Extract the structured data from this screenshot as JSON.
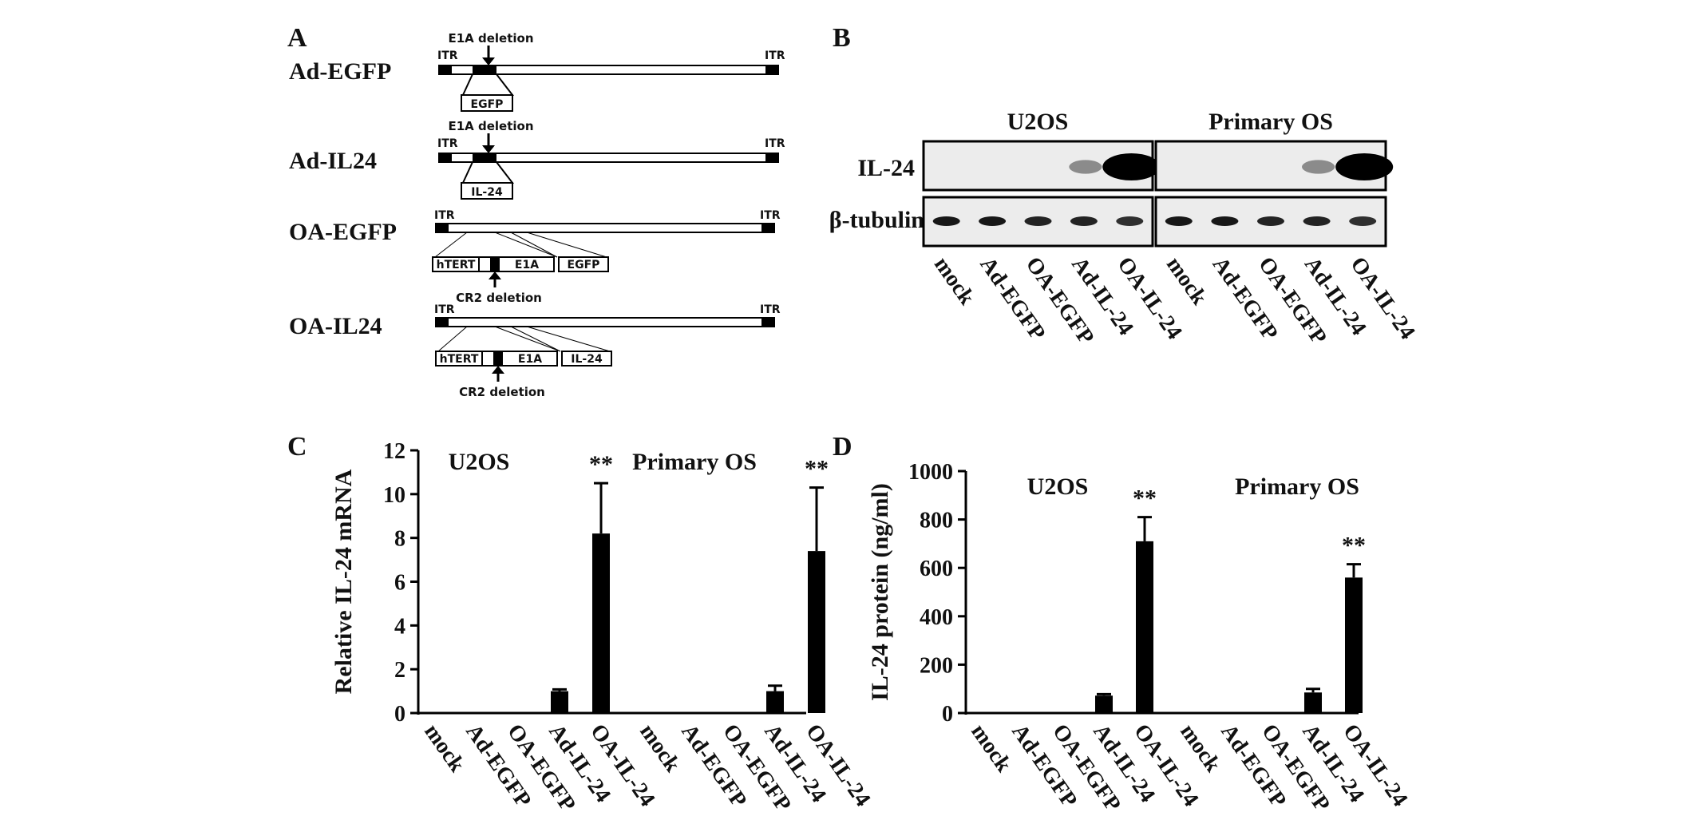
{
  "figure": {
    "panels": [
      "A",
      "B",
      "C",
      "D"
    ]
  },
  "panel_a": {
    "constructs": [
      {
        "name": "Ad-EGFP",
        "itr_left": "ITR",
        "itr_right": "ITR",
        "deletion_label": "E1A deletion",
        "insert": "EGFP"
      },
      {
        "name": "Ad-IL24",
        "itr_left": "ITR",
        "itr_right": "ITR",
        "deletion_label": "E1A deletion",
        "insert": "IL-24"
      },
      {
        "name": "OA-EGFP",
        "itr_left": "ITR",
        "itr_right": "ITR",
        "promoter": "hTERT",
        "gene": "E1A",
        "insert": "EGFP",
        "deletion_label": "CR2 deletion"
      },
      {
        "name": "OA-IL24",
        "itr_left": "ITR",
        "itr_right": "ITR",
        "promoter": "hTERT",
        "gene": "E1A",
        "insert": "IL-24",
        "deletion_label": "CR2 deletion"
      }
    ]
  },
  "panel_b": {
    "groups": [
      "U2OS",
      "Primary OS"
    ],
    "rows": [
      "IL-24",
      "β-tubulin"
    ],
    "lanes": [
      "mock",
      "Ad-EGFP",
      "OA-EGFP",
      "Ad-IL-24",
      "OA-IL-24"
    ],
    "il24_band_intensity": [
      0,
      0,
      0,
      0.3,
      1.0
    ],
    "tubulin_band_intensity": [
      0.9,
      0.9,
      0.85,
      0.85,
      0.8
    ]
  },
  "chart_data": [
    {
      "panel": "C",
      "type": "bar",
      "title": "",
      "xlabel": "",
      "ylabel": "Relative IL-24 mRNA",
      "ylim": [
        0,
        12
      ],
      "yticks": [
        0,
        2,
        4,
        6,
        8,
        10,
        12
      ],
      "groups": [
        "U2OS",
        "Primary OS"
      ],
      "categories": [
        "mock",
        "Ad-EGFP",
        "OA-EGFP",
        "Ad-IL-24",
        "OA-IL-24"
      ],
      "series": [
        {
          "name": "U2OS",
          "values": [
            0.02,
            0.02,
            0.02,
            1.0,
            8.2
          ],
          "errors": [
            0,
            0,
            0,
            0.08,
            2.3
          ],
          "significance": [
            "",
            "",
            "",
            "",
            "**"
          ]
        },
        {
          "name": "Primary OS",
          "values": [
            0.02,
            0.02,
            0.02,
            1.0,
            7.4
          ],
          "errors": [
            0,
            0,
            0,
            0.25,
            2.9
          ],
          "significance": [
            "",
            "",
            "",
            "",
            "**"
          ]
        }
      ]
    },
    {
      "panel": "D",
      "type": "bar",
      "title": "",
      "xlabel": "",
      "ylabel": "IL-24 protein (ng/ml)",
      "ylim": [
        0,
        1000
      ],
      "yticks": [
        0,
        200,
        400,
        600,
        800,
        1000
      ],
      "groups": [
        "U2OS",
        "Primary OS"
      ],
      "categories": [
        "mock",
        "Ad-EGFP",
        "OA-EGFP",
        "Ad-IL-24",
        "OA-IL-24"
      ],
      "series": [
        {
          "name": "U2OS",
          "values": [
            2,
            2,
            2,
            72,
            710
          ],
          "errors": [
            0,
            0,
            0,
            6,
            100
          ],
          "significance": [
            "",
            "",
            "",
            "",
            "**"
          ]
        },
        {
          "name": "Primary OS",
          "values": [
            2,
            2,
            2,
            85,
            560
          ],
          "errors": [
            0,
            0,
            0,
            15,
            55
          ],
          "significance": [
            "",
            "",
            "",
            "",
            "**"
          ]
        }
      ]
    }
  ]
}
